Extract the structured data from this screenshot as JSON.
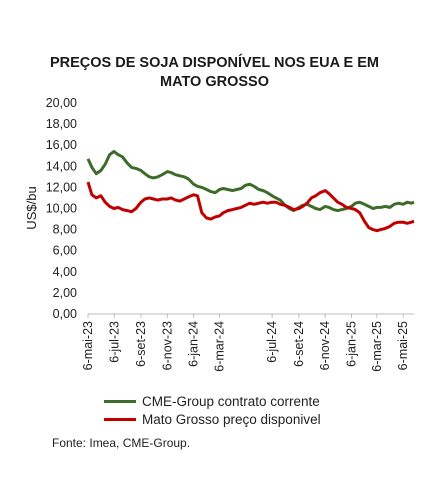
{
  "title_line1": "PREÇOS DE SOJA DISPONÍVEL NOS EUA E EM",
  "title_line2": "MATO GROSSO",
  "source": "Fonte: Imea, CME-Group.",
  "colors": {
    "cme": "#3d6b2a",
    "mt": "#c00000",
    "axis": "#bfbfbf"
  },
  "chart_data": {
    "type": "line",
    "title": "PREÇOS DE SOJA DISPONÍVEL NOS EUA E EM MATO GROSSO",
    "ylabel": "US$/bu",
    "xlabel": "",
    "ylim": [
      0,
      20
    ],
    "yticks": [
      "0,00",
      "2,00",
      "4,00",
      "6,00",
      "8,00",
      "10,00",
      "12,00",
      "14,00",
      "16,00",
      "18,00",
      "20,00"
    ],
    "xlim": [
      "2023-05-06",
      "2025-05-31"
    ],
    "xticks": [
      "6-mai-23",
      "6-jul-23",
      "6-set-23",
      "6-nov-23",
      "6-jan-24",
      "6-mar-24",
      "6-jul-24",
      "6-set-24",
      "6-nov-24",
      "6-jan-25",
      "6-mar-25",
      "6-mai-25"
    ],
    "xtick_dates": [
      "2023-05-06",
      "2023-07-06",
      "2023-09-06",
      "2023-11-06",
      "2024-01-06",
      "2024-03-06",
      "2024-07-06",
      "2024-09-06",
      "2024-11-06",
      "2025-01-06",
      "2025-03-06",
      "2025-05-06"
    ],
    "legend_position": "bottom",
    "grid": false,
    "series": [
      {
        "name": "CME-Group contrato corrente",
        "color": "#3d6b2a",
        "points": [
          [
            "2023-05-06",
            14.7
          ],
          [
            "2023-05-15",
            13.9
          ],
          [
            "2023-05-25",
            13.3
          ],
          [
            "2023-06-05",
            13.6
          ],
          [
            "2023-06-15",
            14.2
          ],
          [
            "2023-06-25",
            15.1
          ],
          [
            "2023-07-05",
            15.4
          ],
          [
            "2023-07-15",
            15.1
          ],
          [
            "2023-07-25",
            14.9
          ],
          [
            "2023-08-05",
            14.3
          ],
          [
            "2023-08-15",
            13.9
          ],
          [
            "2023-08-25",
            13.8
          ],
          [
            "2023-09-06",
            13.6
          ],
          [
            "2023-09-15",
            13.3
          ],
          [
            "2023-09-25",
            13.0
          ],
          [
            "2023-10-05",
            12.9
          ],
          [
            "2023-10-15",
            13.0
          ],
          [
            "2023-10-25",
            13.2
          ],
          [
            "2023-11-06",
            13.5
          ],
          [
            "2023-11-15",
            13.4
          ],
          [
            "2023-11-25",
            13.2
          ],
          [
            "2023-12-05",
            13.1
          ],
          [
            "2023-12-15",
            13.0
          ],
          [
            "2023-12-25",
            12.8
          ],
          [
            "2024-01-06",
            12.3
          ],
          [
            "2024-01-15",
            12.1
          ],
          [
            "2024-01-25",
            12.0
          ],
          [
            "2024-02-05",
            11.8
          ],
          [
            "2024-02-15",
            11.6
          ],
          [
            "2024-02-25",
            11.5
          ],
          [
            "2024-03-06",
            11.8
          ],
          [
            "2024-03-15",
            11.9
          ],
          [
            "2024-03-25",
            11.8
          ],
          [
            "2024-04-05",
            11.7
          ],
          [
            "2024-04-15",
            11.8
          ],
          [
            "2024-04-25",
            11.9
          ],
          [
            "2024-05-05",
            12.2
          ],
          [
            "2024-05-15",
            12.3
          ],
          [
            "2024-05-25",
            12.1
          ],
          [
            "2024-06-05",
            11.8
          ],
          [
            "2024-06-15",
            11.7
          ],
          [
            "2024-06-25",
            11.5
          ],
          [
            "2024-07-06",
            11.2
          ],
          [
            "2024-07-15",
            11.0
          ],
          [
            "2024-07-25",
            10.8
          ],
          [
            "2024-08-05",
            10.3
          ],
          [
            "2024-08-15",
            10.0
          ],
          [
            "2024-08-25",
            9.8
          ],
          [
            "2024-09-06",
            10.1
          ],
          [
            "2024-09-15",
            10.3
          ],
          [
            "2024-09-25",
            10.4
          ],
          [
            "2024-10-05",
            10.2
          ],
          [
            "2024-10-15",
            10.0
          ],
          [
            "2024-10-25",
            9.9
          ],
          [
            "2024-11-06",
            10.2
          ],
          [
            "2024-11-15",
            10.1
          ],
          [
            "2024-11-25",
            9.9
          ],
          [
            "2024-12-05",
            9.8
          ],
          [
            "2024-12-15",
            9.9
          ],
          [
            "2024-12-25",
            10.0
          ],
          [
            "2025-01-06",
            10.2
          ],
          [
            "2025-01-15",
            10.5
          ],
          [
            "2025-01-25",
            10.6
          ],
          [
            "2025-02-05",
            10.4
          ],
          [
            "2025-02-15",
            10.2
          ],
          [
            "2025-02-25",
            10.0
          ],
          [
            "2025-03-06",
            10.1
          ],
          [
            "2025-03-15",
            10.1
          ],
          [
            "2025-03-25",
            10.2
          ],
          [
            "2025-04-05",
            10.1
          ],
          [
            "2025-04-15",
            10.4
          ],
          [
            "2025-04-25",
            10.5
          ],
          [
            "2025-05-06",
            10.4
          ],
          [
            "2025-05-15",
            10.6
          ],
          [
            "2025-05-25",
            10.5
          ],
          [
            "2025-05-31",
            10.6
          ]
        ]
      },
      {
        "name": "Mato Grosso preço disponivel",
        "color": "#c00000",
        "points": [
          [
            "2023-05-06",
            12.5
          ],
          [
            "2023-05-15",
            11.3
          ],
          [
            "2023-05-25",
            11.0
          ],
          [
            "2023-06-05",
            11.2
          ],
          [
            "2023-06-15",
            10.6
          ],
          [
            "2023-06-25",
            10.2
          ],
          [
            "2023-07-05",
            10.0
          ],
          [
            "2023-07-15",
            10.1
          ],
          [
            "2023-07-25",
            9.9
          ],
          [
            "2023-08-05",
            9.8
          ],
          [
            "2023-08-15",
            9.7
          ],
          [
            "2023-08-25",
            10.0
          ],
          [
            "2023-09-06",
            10.6
          ],
          [
            "2023-09-15",
            10.9
          ],
          [
            "2023-09-25",
            11.0
          ],
          [
            "2023-10-05",
            10.9
          ],
          [
            "2023-10-15",
            10.8
          ],
          [
            "2023-10-25",
            10.9
          ],
          [
            "2023-11-06",
            10.9
          ],
          [
            "2023-11-15",
            11.0
          ],
          [
            "2023-11-25",
            10.8
          ],
          [
            "2023-12-05",
            10.7
          ],
          [
            "2023-12-15",
            10.9
          ],
          [
            "2023-12-25",
            11.1
          ],
          [
            "2024-01-06",
            11.3
          ],
          [
            "2024-01-15",
            11.2
          ],
          [
            "2024-01-25",
            9.6
          ],
          [
            "2024-02-05",
            9.1
          ],
          [
            "2024-02-15",
            9.0
          ],
          [
            "2024-02-25",
            9.2
          ],
          [
            "2024-03-06",
            9.3
          ],
          [
            "2024-03-15",
            9.6
          ],
          [
            "2024-03-25",
            9.8
          ],
          [
            "2024-04-05",
            9.9
          ],
          [
            "2024-04-15",
            10.0
          ],
          [
            "2024-04-25",
            10.1
          ],
          [
            "2024-05-05",
            10.3
          ],
          [
            "2024-05-15",
            10.5
          ],
          [
            "2024-05-25",
            10.4
          ],
          [
            "2024-06-05",
            10.5
          ],
          [
            "2024-06-15",
            10.6
          ],
          [
            "2024-06-25",
            10.5
          ],
          [
            "2024-07-06",
            10.6
          ],
          [
            "2024-07-15",
            10.6
          ],
          [
            "2024-07-25",
            10.4
          ],
          [
            "2024-08-05",
            10.3
          ],
          [
            "2024-08-15",
            10.1
          ],
          [
            "2024-08-25",
            9.9
          ],
          [
            "2024-09-06",
            10.0
          ],
          [
            "2024-09-15",
            10.2
          ],
          [
            "2024-09-25",
            10.5
          ],
          [
            "2024-10-05",
            11.0
          ],
          [
            "2024-10-15",
            11.2
          ],
          [
            "2024-10-25",
            11.5
          ],
          [
            "2024-11-06",
            11.7
          ],
          [
            "2024-11-15",
            11.4
          ],
          [
            "2024-11-25",
            11.0
          ],
          [
            "2024-12-05",
            10.6
          ],
          [
            "2024-12-15",
            10.4
          ],
          [
            "2024-12-25",
            10.1
          ],
          [
            "2025-01-06",
            10.0
          ],
          [
            "2025-01-15",
            9.9
          ],
          [
            "2025-01-25",
            9.6
          ],
          [
            "2025-02-05",
            8.8
          ],
          [
            "2025-02-15",
            8.2
          ],
          [
            "2025-02-25",
            8.0
          ],
          [
            "2025-03-06",
            7.9
          ],
          [
            "2025-03-15",
            8.0
          ],
          [
            "2025-03-25",
            8.1
          ],
          [
            "2025-04-05",
            8.3
          ],
          [
            "2025-04-15",
            8.6
          ],
          [
            "2025-04-25",
            8.7
          ],
          [
            "2025-05-06",
            8.7
          ],
          [
            "2025-05-15",
            8.6
          ],
          [
            "2025-05-25",
            8.7
          ],
          [
            "2025-05-31",
            8.8
          ]
        ]
      }
    ]
  }
}
